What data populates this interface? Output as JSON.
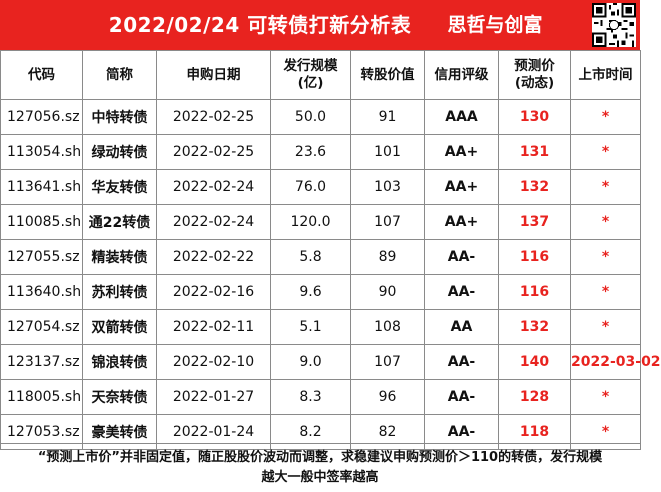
{
  "header": {
    "title": "2022/02/24 可转债打新分析表",
    "brand": "思哲与创富",
    "colors": {
      "accent": "#e8231f",
      "header_text": "#ffffff",
      "highlight_text": "#e8231f"
    },
    "qr_icon": "qr-code-icon"
  },
  "table": {
    "columns": [
      {
        "label": "代码"
      },
      {
        "label": "简称"
      },
      {
        "label": "申购日期"
      },
      {
        "label": "发行规模\n(亿)"
      },
      {
        "label": "转股价值"
      },
      {
        "label": "信用评级"
      },
      {
        "label": "预测价\n(动态)"
      },
      {
        "label": "上市时间"
      }
    ],
    "rows": [
      {
        "code": "127056.sz",
        "name": "中特转债",
        "date": "2022-02-25",
        "size": "50.0",
        "conv": "91",
        "rating": "AAA",
        "pred": "130",
        "listing": "*"
      },
      {
        "code": "113054.sh",
        "name": "绿动转债",
        "date": "2022-02-25",
        "size": "23.6",
        "conv": "101",
        "rating": "AA+",
        "pred": "131",
        "listing": "*"
      },
      {
        "code": "113641.sh",
        "name": "华友转债",
        "date": "2022-02-24",
        "size": "76.0",
        "conv": "103",
        "rating": "AA+",
        "pred": "132",
        "listing": "*"
      },
      {
        "code": "110085.sh",
        "name": "通22转债",
        "date": "2022-02-24",
        "size": "120.0",
        "conv": "107",
        "rating": "AA+",
        "pred": "137",
        "listing": "*"
      },
      {
        "code": "127055.sz",
        "name": "精装转债",
        "date": "2022-02-22",
        "size": "5.8",
        "conv": "89",
        "rating": "AA-",
        "pred": "116",
        "listing": "*"
      },
      {
        "code": "113640.sh",
        "name": "苏利转债",
        "date": "2022-02-16",
        "size": "9.6",
        "conv": "90",
        "rating": "AA-",
        "pred": "116",
        "listing": "*"
      },
      {
        "code": "127054.sz",
        "name": "双箭转债",
        "date": "2022-02-11",
        "size": "5.1",
        "conv": "108",
        "rating": "AA",
        "pred": "132",
        "listing": "*"
      },
      {
        "code": "123137.sz",
        "name": "锦浪转债",
        "date": "2022-02-10",
        "size": "9.0",
        "conv": "107",
        "rating": "AA-",
        "pred": "140",
        "listing": "2022-03-02"
      },
      {
        "code": "118005.sh",
        "name": "天奈转债",
        "date": "2022-01-27",
        "size": "8.3",
        "conv": "96",
        "rating": "AA-",
        "pred": "128",
        "listing": "*"
      },
      {
        "code": "127053.sz",
        "name": "豪美转债",
        "date": "2022-01-24",
        "size": "8.2",
        "conv": "82",
        "rating": "AA-",
        "pred": "118",
        "listing": "*"
      }
    ]
  },
  "footnote": {
    "line1": "“预测上市价”并非固定值，随正股股价波动而调整，求稳建议申购预测价＞110的转债，发行规模",
    "line2": "越大一般中签率越高"
  }
}
